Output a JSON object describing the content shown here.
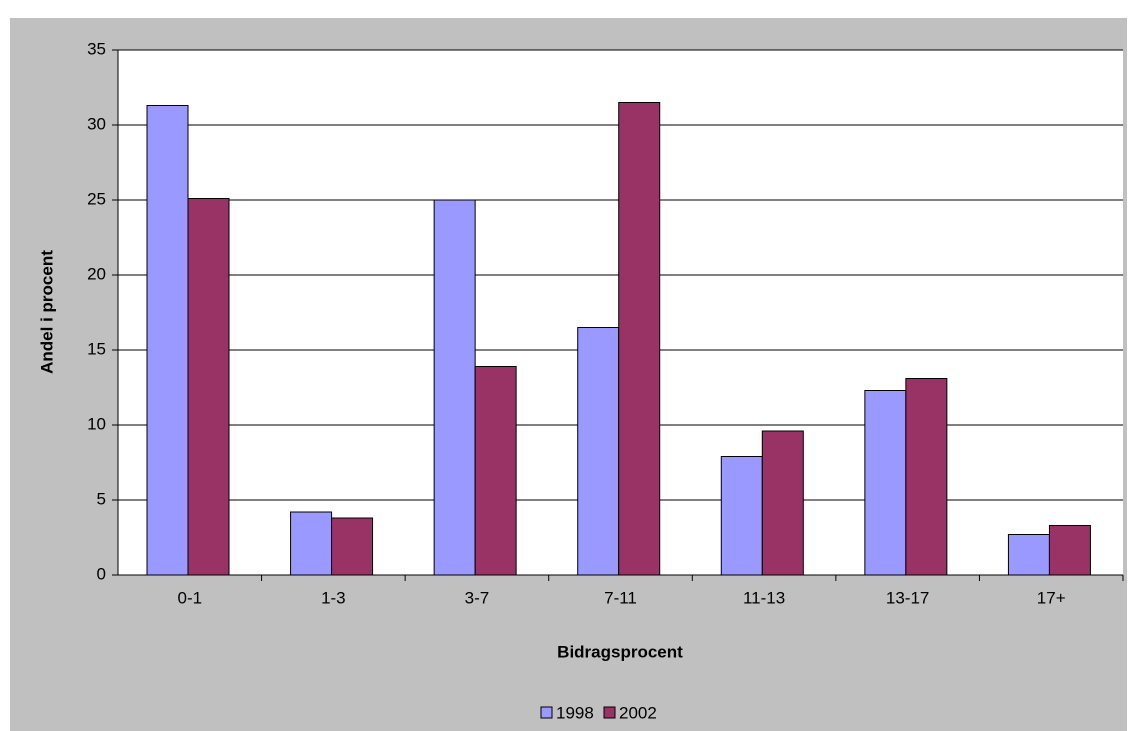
{
  "chart_data": {
    "type": "bar",
    "x_label": "Bidragsprocent",
    "y_label": "Andel i procent",
    "categories": [
      "0-1",
      "1-3",
      "3-7",
      "7-11",
      "11-13",
      "13-17",
      "17+"
    ],
    "series": [
      {
        "name": "1998",
        "color": "#9999ff",
        "values": [
          31.3,
          4.2,
          25.0,
          16.5,
          7.9,
          12.3,
          2.7
        ]
      },
      {
        "name": "2002",
        "color": "#993366",
        "values": [
          25.1,
          3.8,
          13.9,
          31.5,
          9.6,
          13.1,
          3.3
        ]
      }
    ],
    "ylim": [
      0,
      35
    ],
    "yticks": [
      0,
      5,
      10,
      15,
      20,
      25,
      30,
      35
    ],
    "grid": true,
    "legend": "bottom"
  }
}
